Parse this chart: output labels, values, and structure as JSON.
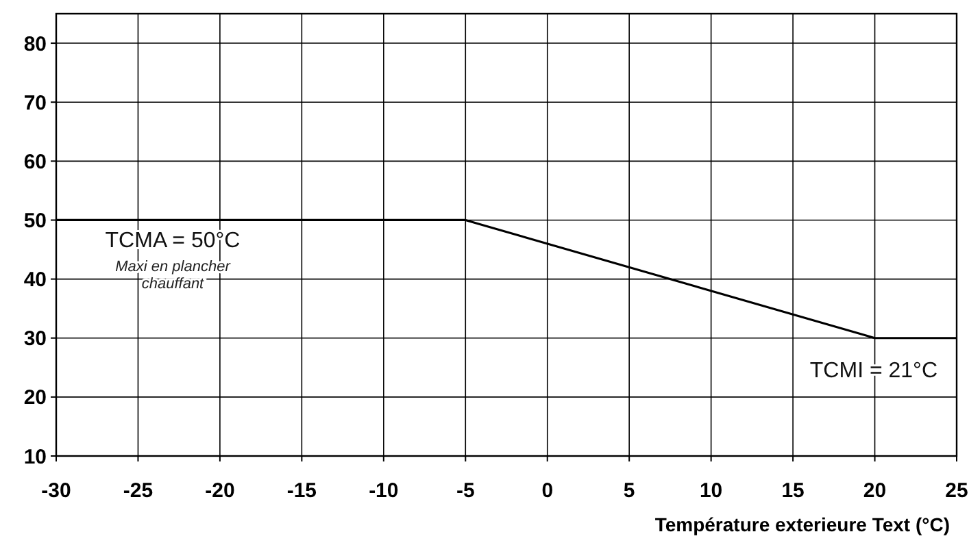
{
  "chart_data": {
    "type": "line",
    "xlabel": "Température exterieure Text (°C)",
    "x": [
      -30,
      -5,
      20,
      25
    ],
    "series": [
      {
        "color": "#000000",
        "values": [
          50,
          50,
          30,
          30
        ]
      }
    ],
    "xlim": [
      -30,
      25
    ],
    "xticks": [
      -30,
      -25,
      -20,
      -15,
      -10,
      -5,
      0,
      5,
      10,
      15,
      20,
      25
    ],
    "ylim": [
      10,
      85
    ],
    "yticks": [
      10,
      20,
      30,
      40,
      50,
      60,
      70,
      80
    ],
    "grid": true,
    "marker": "none",
    "line_style": "solid",
    "annotations": [
      "TCMA = 50°C",
      "Maxi en plancher chauffant",
      "TCMI = 21°C"
    ]
  }
}
